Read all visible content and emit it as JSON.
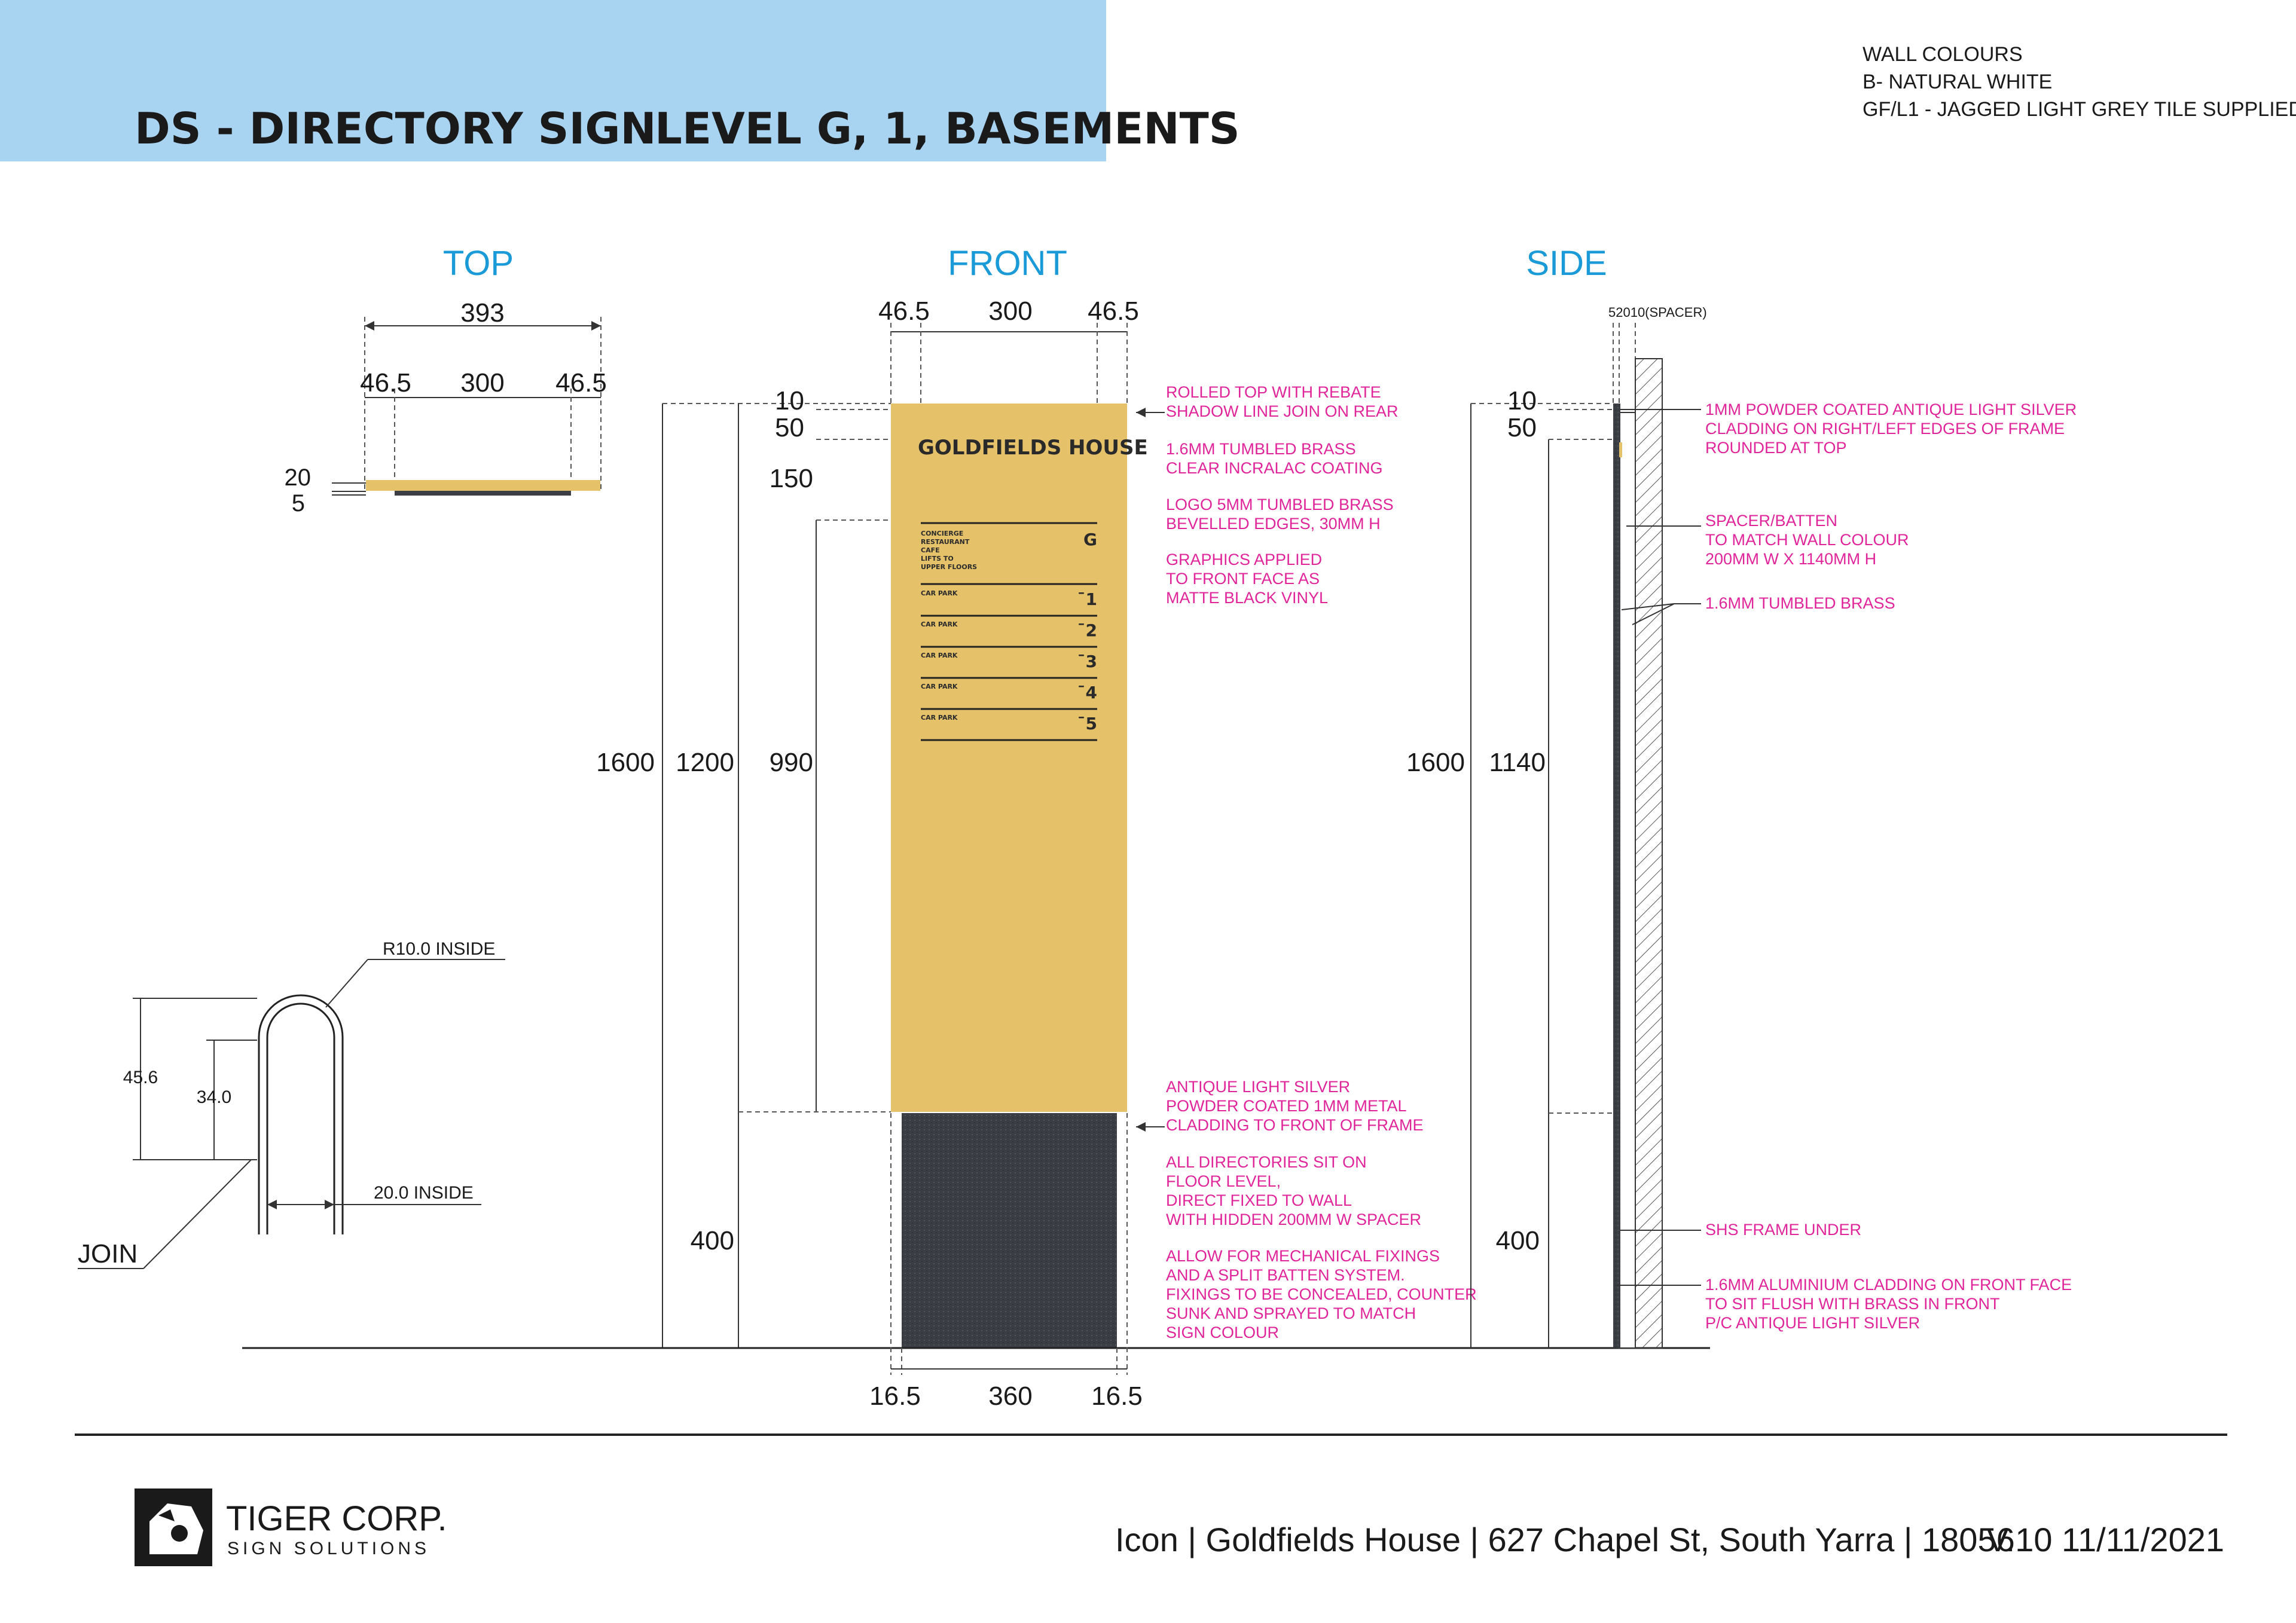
{
  "header": {
    "title": "DS - DIRECTORY SIGN",
    "levels": "LEVEL G, 1, BASEMENTS",
    "band_color": "#a8d3f1"
  },
  "wall_colours": {
    "title": "WALL COLOURS",
    "lines": [
      "B- NATURAL WHITE",
      "GF/L1 - JAGGED LIGHT GREY TILE SUPPLIED"
    ]
  },
  "views": {
    "top": "TOP",
    "front": "FRONT",
    "side": "SIDE"
  },
  "colors": {
    "brass": "#e5c26a",
    "cladding": "#3b3f45",
    "accent": "#1a9ad6",
    "note": "#e0249a"
  },
  "top_view": {
    "overall": "393",
    "left": "46.5",
    "mid": "300",
    "right": "46.5",
    "thick_a": "20",
    "thick_b": "5"
  },
  "front_view": {
    "top_left": "46.5",
    "top_mid": "300",
    "top_right": "46.5",
    "h_10": "10",
    "h_50": "50",
    "h_150": "150",
    "h_1600": "1600",
    "h_1200": "1200",
    "h_990": "990",
    "h_400": "400",
    "bot_left": "16.5",
    "bot_mid": "360",
    "bot_right": "16.5"
  },
  "sign_face": {
    "name": "GOLDFIELDS HOUSE",
    "rows": [
      {
        "label_lines": [
          "CONCIERGE",
          "RESTAURANT",
          "CAFE",
          "LIFTS TO",
          "UPPER FLOORS"
        ],
        "level": "G"
      },
      {
        "label_lines": [
          "CAR PARK"
        ],
        "level": "¯1"
      },
      {
        "label_lines": [
          "CAR PARK"
        ],
        "level": "¯2"
      },
      {
        "label_lines": [
          "CAR PARK"
        ],
        "level": "¯3"
      },
      {
        "label_lines": [
          "CAR PARK"
        ],
        "level": "¯4"
      },
      {
        "label_lines": [
          "CAR PARK"
        ],
        "level": "¯5"
      }
    ]
  },
  "front_notes": [
    [
      "ROLLED TOP WITH REBATE",
      "SHADOW LINE JOIN ON REAR"
    ],
    [
      "1.6MM TUMBLED BRASS",
      "CLEAR INCRALAC COATING"
    ],
    [
      "LOGO 5MM TUMBLED BRASS",
      "BEVELLED EDGES, 30MM H"
    ],
    [
      "GRAPHICS APPLIED",
      "TO FRONT FACE AS",
      "MATTE BLACK VINYL"
    ],
    [
      "ANTIQUE LIGHT SILVER",
      "POWDER COATED 1MM METAL",
      "CLADDING TO FRONT OF FRAME"
    ],
    [
      "ALL DIRECTORIES SIT ON",
      "FLOOR LEVEL,",
      "DIRECT FIXED TO WALL",
      "WITH HIDDEN 200MM W SPACER"
    ],
    [
      "ALLOW FOR MECHANICAL FIXINGS",
      "AND A SPLIT BATTEN SYSTEM.",
      "FIXINGS TO BE CONCEALED, COUNTER",
      "SUNK AND SPRAYED TO MATCH",
      "SIGN COLOUR"
    ]
  ],
  "side_view": {
    "spacer": "52010(SPACER)",
    "h_10": "10",
    "h_50": "50",
    "h_1600": "1600",
    "h_1140": "1140",
    "h_400": "400"
  },
  "side_notes": [
    [
      "1MM POWDER COATED ANTIQUE LIGHT SILVER",
      "CLADDING ON RIGHT/LEFT EDGES OF FRAME",
      "ROUNDED AT TOP"
    ],
    [
      "SPACER/BATTEN",
      "TO MATCH WALL COLOUR",
      "200MM W X 1140MM H"
    ],
    [
      "1.6MM TUMBLED BRASS"
    ],
    [
      "SHS FRAME UNDER"
    ],
    [
      "1.6MM ALUMINIUM CLADDING ON FRONT FACE",
      "TO SIT FLUSH WITH BRASS IN FRONT",
      "P/C ANTIQUE LIGHT SILVER"
    ]
  ],
  "detail": {
    "radius": "R10.0 INSIDE",
    "h1": "45.6",
    "h2": "34.0",
    "width": "20.0 INSIDE",
    "join": "JOIN"
  },
  "footer": {
    "company": "TIGER CORP.",
    "tagline": "SIGN SOLUTIONS",
    "project": "Icon | Goldfields House | 627 Chapel St, South Yarra | 18056",
    "version": "V.10 11/11/2021"
  }
}
